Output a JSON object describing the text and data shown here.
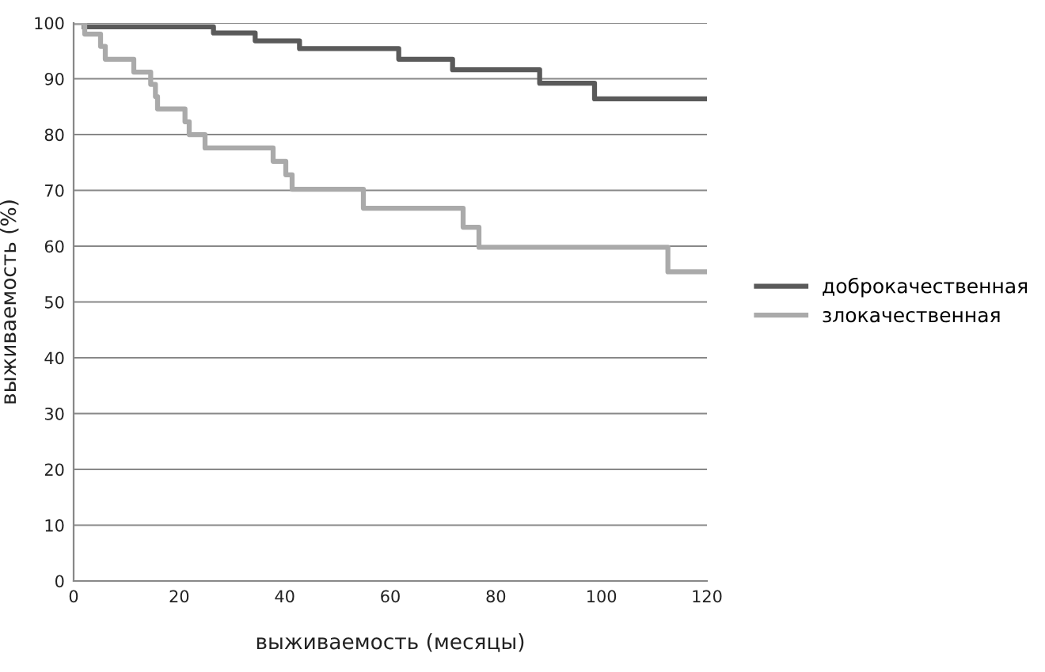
{
  "chart_data": {
    "type": "step",
    "xlabel": "выживаемость (месяцы)",
    "ylabel": "выживаемость (%)",
    "xlim": [
      0,
      120
    ],
    "xticks": [
      0,
      20,
      40,
      60,
      80,
      100,
      120
    ],
    "ylim": [
      0,
      100
    ],
    "yticks": [
      0,
      10,
      20,
      30,
      40,
      50,
      60,
      70,
      80,
      90,
      100
    ],
    "grid": "y",
    "legend": "right",
    "line_style": "solid",
    "marker": "none",
    "series": [
      {
        "name": "доброкачественная",
        "color": "#5a5a5a",
        "x": [
          2,
          26.5,
          34.4,
          42.8,
          61.6,
          71.8,
          88.3,
          98.7,
          120
        ],
        "values": [
          99.3,
          98.2,
          96.8,
          95.4,
          93.5,
          91.6,
          89.2,
          86.4,
          86.4
        ]
      },
      {
        "name": "злокачественная",
        "color": "#aaaaaa",
        "x": [
          0,
          2.1,
          5.1,
          6.0,
          11.4,
          14.6,
          15.5,
          15.9,
          21.1,
          21.9,
          24.9,
          37.8,
          40.2,
          41.4,
          54.9,
          73.8,
          76.8,
          112.6,
          120
        ],
        "values": [
          100,
          98.0,
          95.8,
          93.5,
          91.2,
          89.0,
          86.8,
          84.6,
          82.3,
          80.0,
          77.6,
          75.2,
          72.8,
          70.2,
          66.8,
          63.4,
          59.8,
          55.4,
          55.4
        ]
      }
    ]
  }
}
